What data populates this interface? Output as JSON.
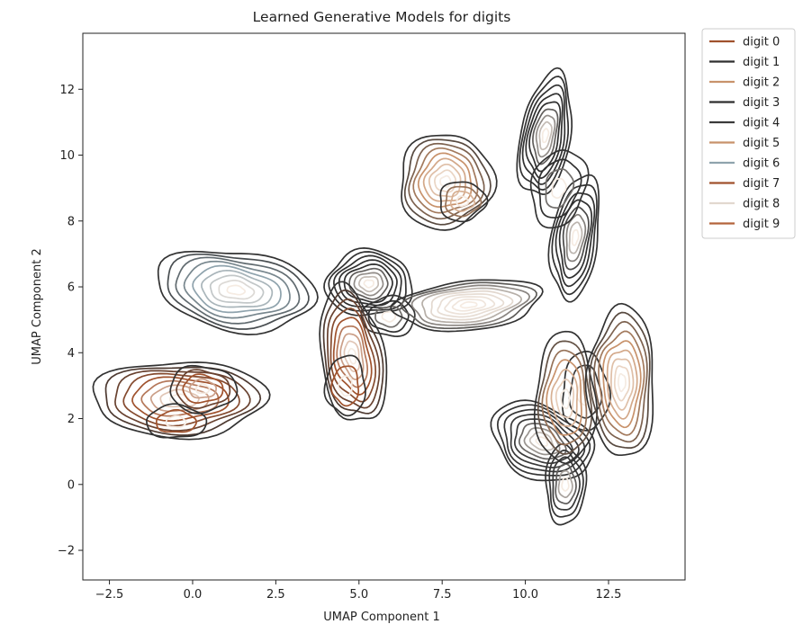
{
  "chart_data": {
    "type": "contour",
    "title": "Learned Generative Models for digits",
    "xlabel": "UMAP Component 1",
    "ylabel": "UMAP Component 2",
    "xlim": [
      -3.3,
      14.8
    ],
    "ylim": [
      -2.9,
      13.7
    ],
    "xticks": [
      -2.5,
      0.0,
      2.5,
      5.0,
      7.5,
      10.0,
      12.5
    ],
    "xtick_labels": [
      "−2.5",
      "0.0",
      "2.5",
      "5.0",
      "7.5",
      "10.0",
      "12.5"
    ],
    "yticks": [
      -2,
      0,
      2,
      4,
      6,
      8,
      10,
      12
    ],
    "ytick_labels": [
      "−2",
      "0",
      "2",
      "4",
      "6",
      "8",
      "10",
      "12"
    ],
    "grid": false,
    "legend_position": "outside-top-right",
    "levels": 9,
    "series": [
      {
        "name": "digit 0",
        "color": "#a0522d",
        "blobs": [
          {
            "cx": -0.4,
            "cy": 2.6,
            "rx": 2.6,
            "ry": 1.15,
            "angle": 0,
            "peak": 1.0
          },
          {
            "cx": 0.3,
            "cy": 2.9,
            "rx": 1.0,
            "ry": 0.7,
            "angle": 0,
            "peak": 0.5
          },
          {
            "cx": -0.5,
            "cy": 1.9,
            "rx": 0.9,
            "ry": 0.5,
            "angle": 0,
            "peak": 0.35
          }
        ]
      },
      {
        "name": "digit 1",
        "color": "#2f2f2f",
        "blobs": [
          {
            "cx": 10.6,
            "cy": 10.6,
            "rx": 0.75,
            "ry": 1.9,
            "angle": -10,
            "peak": 1.0
          },
          {
            "cx": 11.5,
            "cy": 7.5,
            "rx": 0.7,
            "ry": 1.9,
            "angle": -8,
            "peak": 0.9
          },
          {
            "cx": 11.0,
            "cy": 9.0,
            "rx": 0.8,
            "ry": 1.2,
            "angle": -15,
            "peak": 0.45
          }
        ]
      },
      {
        "name": "digit 2",
        "color": "#c8926b",
        "blobs": [
          {
            "cx": 7.6,
            "cy": 9.2,
            "rx": 1.4,
            "ry": 1.45,
            "angle": -30,
            "peak": 1.0
          },
          {
            "cx": 8.1,
            "cy": 8.6,
            "rx": 0.7,
            "ry": 0.6,
            "angle": 0,
            "peak": 0.45
          }
        ]
      },
      {
        "name": "digit 3",
        "color": "#2f2f2f",
        "blobs": [
          {
            "cx": 5.3,
            "cy": 6.1,
            "rx": 1.3,
            "ry": 1.0,
            "angle": 0,
            "peak": 1.0
          },
          {
            "cx": 5.9,
            "cy": 5.1,
            "rx": 0.8,
            "ry": 0.6,
            "angle": 0,
            "peak": 0.4
          }
        ]
      },
      {
        "name": "digit 4",
        "color": "#3a3a3a",
        "blobs": [
          {
            "cx": 10.5,
            "cy": 1.3,
            "rx": 1.6,
            "ry": 1.1,
            "angle": -25,
            "peak": 1.0
          },
          {
            "cx": 11.2,
            "cy": 0.0,
            "rx": 0.6,
            "ry": 1.2,
            "angle": 0,
            "peak": 0.7
          },
          {
            "cx": 11.8,
            "cy": 2.8,
            "rx": 0.7,
            "ry": 1.2,
            "angle": 0,
            "peak": 0.35
          }
        ]
      },
      {
        "name": "digit 5",
        "color": "#c8926b",
        "blobs": [
          {
            "cx": 11.2,
            "cy": 2.6,
            "rx": 0.9,
            "ry": 2.0,
            "angle": 0,
            "peak": 0.8
          },
          {
            "cx": 12.9,
            "cy": 3.1,
            "rx": 1.0,
            "ry": 2.3,
            "angle": 0,
            "peak": 1.0
          }
        ]
      },
      {
        "name": "digit 6",
        "color": "#8fa3ad",
        "blobs": [
          {
            "cx": 1.3,
            "cy": 5.9,
            "rx": 2.4,
            "ry": 1.2,
            "angle": -8,
            "peak": 1.0
          }
        ]
      },
      {
        "name": "digit 7",
        "color": "#a0522d",
        "blobs": [
          {
            "cx": 4.8,
            "cy": 3.9,
            "rx": 0.95,
            "ry": 2.1,
            "angle": 10,
            "peak": 1.0
          },
          {
            "cx": 4.6,
            "cy": 3.0,
            "rx": 0.6,
            "ry": 0.9,
            "angle": 0,
            "peak": 0.35
          }
        ]
      },
      {
        "name": "digit 8",
        "color": "#e2d8cf",
        "blobs": [
          {
            "cx": 8.3,
            "cy": 5.45,
            "rx": 2.2,
            "ry": 0.75,
            "angle": 6,
            "peak": 1.0
          }
        ]
      },
      {
        "name": "digit 9",
        "color": "#b4643c",
        "blobs": []
      }
    ]
  }
}
